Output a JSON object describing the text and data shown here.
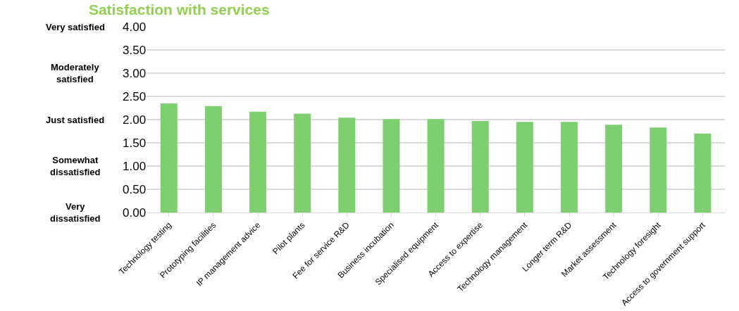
{
  "chart_data": {
    "type": "bar",
    "title": "Satisfaction with services",
    "categories": [
      "Technology testing",
      "Prototyping facilities",
      "IP management advice",
      "Pilot plants",
      "Fee for service R&D",
      "Business incubation",
      "Specialised equipment",
      "Access to expertise",
      "Technology management",
      "Longer term R&D",
      "Market assessment",
      "Technology foresight",
      "Access to government support"
    ],
    "values": [
      2.35,
      2.29,
      2.17,
      2.13,
      2.04,
      2.01,
      2.01,
      1.97,
      1.95,
      1.95,
      1.89,
      1.83,
      1.7
    ],
    "color": "#7dcf6f",
    "ylim": [
      0,
      4
    ],
    "yticks": [
      {
        "value": 0,
        "label": "0.00"
      },
      {
        "value": 0.5,
        "label": "0.50"
      },
      {
        "value": 1,
        "label": "1.00"
      },
      {
        "value": 1.5,
        "label": "1.50"
      },
      {
        "value": 2,
        "label": "2.00"
      },
      {
        "value": 2.5,
        "label": "2.50"
      },
      {
        "value": 3,
        "label": "3.00"
      },
      {
        "value": 3.5,
        "label": "3.50"
      },
      {
        "value": 4,
        "label": "4.00"
      }
    ],
    "annotations": [
      "Very satisfied",
      "Moderately\nsatisfied",
      "Just satisfied",
      "Somewhat\ndissatisfied",
      "Very\ndissatisfied"
    ],
    "grid": "y"
  }
}
